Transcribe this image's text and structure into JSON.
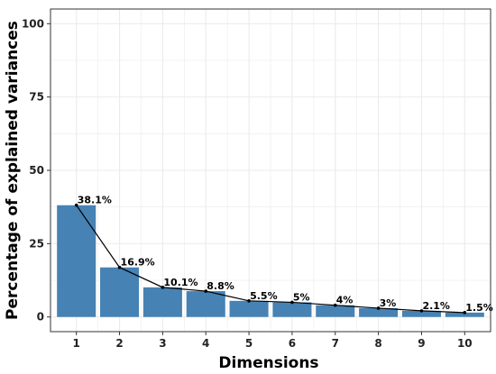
{
  "chart_data": {
    "type": "bar",
    "xlabel": "Dimensions",
    "ylabel": "Percentage of explained variances",
    "categories": [
      "1",
      "2",
      "3",
      "4",
      "5",
      "6",
      "7",
      "8",
      "9",
      "10"
    ],
    "values": [
      38.1,
      16.9,
      10.1,
      8.8,
      5.5,
      5.0,
      4.0,
      3.0,
      2.1,
      1.5
    ],
    "data_labels": [
      "38.1%",
      "16.9%",
      "10.1%",
      "8.8%",
      "5.5%",
      "5%",
      "4%",
      "3%",
      "2.1%",
      "1.5%"
    ],
    "ylim": [
      0,
      100
    ],
    "yticks": [
      0,
      25,
      50,
      75,
      100
    ],
    "ytick_labels": [
      "0",
      "25",
      "50",
      "75",
      "100"
    ],
    "overlay_line": true,
    "grid": true,
    "colors": {
      "bar": "#4682b4",
      "line": "#000000",
      "grid": "#ebebeb",
      "panel_border": "#333333"
    }
  }
}
